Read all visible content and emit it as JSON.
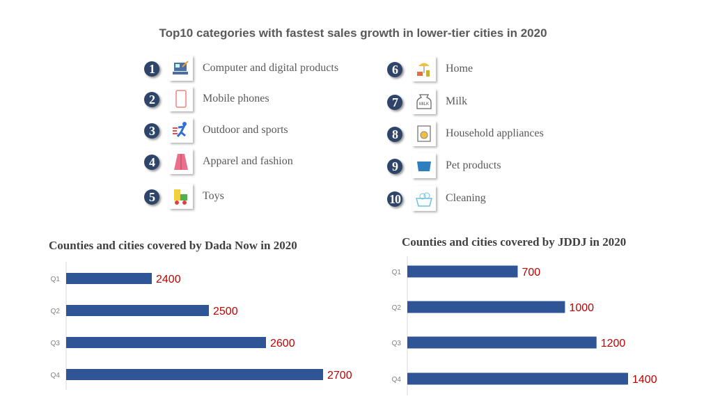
{
  "title": "Top10 categories with fastest sales growth in lower-tier cities in 2020",
  "categories": [
    {
      "rank": "1",
      "label": "Computer and digital products",
      "icon": "laptop-icon"
    },
    {
      "rank": "2",
      "label": "Mobile phones",
      "icon": "mobile-phone-icon"
    },
    {
      "rank": "3",
      "label": "Outdoor and sports",
      "icon": "runner-icon"
    },
    {
      "rank": "4",
      "label": "Apparel and fashion",
      "icon": "coat-icon"
    },
    {
      "rank": "5",
      "label": "Toys",
      "icon": "toy-train-icon"
    },
    {
      "rank": "6",
      "label": "Home",
      "icon": "home-umbrella-icon"
    },
    {
      "rank": "7",
      "label": "Milk",
      "icon": "milk-jar-icon"
    },
    {
      "rank": "8",
      "label": "Household appliances",
      "icon": "washing-machine-icon"
    },
    {
      "rank": "9",
      "label": "Pet products",
      "icon": "pet-bowl-icon"
    },
    {
      "rank": "10",
      "label": "Cleaning",
      "icon": "bathtub-icon"
    }
  ],
  "colors": {
    "bar": "#2f5597",
    "data_label": "#c00000",
    "badge": "#2e4468"
  },
  "chart_data": [
    {
      "type": "bar",
      "orientation": "horizontal",
      "title": "Counties and cities covered by Dada Now in 2020",
      "categories": [
        "Q1",
        "Q2",
        "Q3",
        "Q4"
      ],
      "values": [
        2400,
        2500,
        2600,
        2700
      ],
      "xlim": [
        2250,
        2700
      ],
      "grid": false
    },
    {
      "type": "bar",
      "orientation": "horizontal",
      "title": "Counties and cities covered by JDDJ in 2020",
      "categories": [
        "Q1",
        "Q2",
        "Q3",
        "Q4"
      ],
      "values": [
        700,
        1000,
        1200,
        1400
      ],
      "xlim": [
        0,
        1400
      ],
      "grid": false
    }
  ]
}
